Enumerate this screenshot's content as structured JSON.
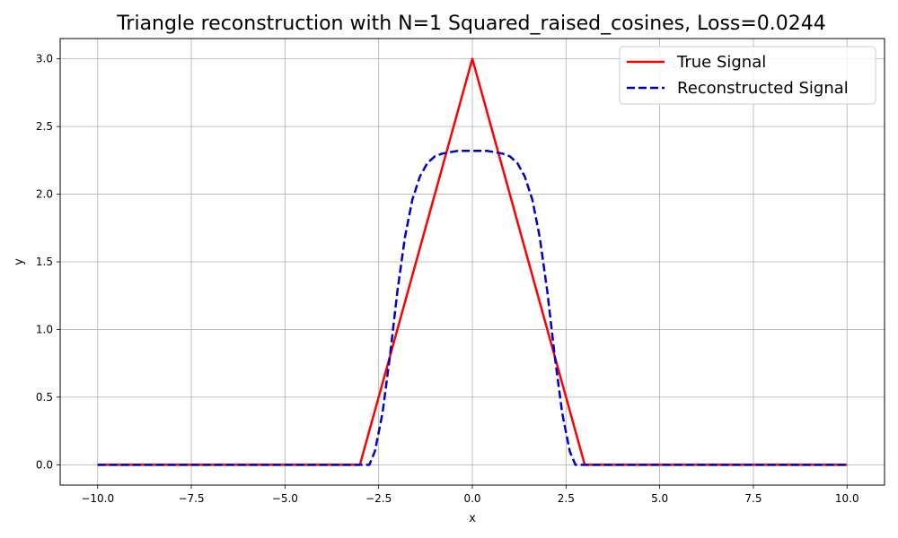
{
  "chart_data": {
    "type": "line",
    "title": "Triangle reconstruction with N=1 Squared_raised_cosines, Loss=0.0244",
    "xlabel": "x",
    "ylabel": "y",
    "xlim": [
      -11.0,
      11.0
    ],
    "ylim": [
      -0.15,
      3.15
    ],
    "xticks": [
      -10.0,
      -7.5,
      -5.0,
      -2.5,
      0.0,
      2.5,
      5.0,
      7.5,
      10.0
    ],
    "xtick_labels": [
      "−10.0",
      "−7.5",
      "−5.0",
      "−2.5",
      "0.0",
      "2.5",
      "5.0",
      "7.5",
      "10.0"
    ],
    "yticks": [
      0.0,
      0.5,
      1.0,
      1.5,
      2.0,
      2.5,
      3.0
    ],
    "ytick_labels": [
      "0.0",
      "0.5",
      "1.0",
      "1.5",
      "2.0",
      "2.5",
      "3.0"
    ],
    "grid": true,
    "legend_position": "top-right",
    "series": [
      {
        "name": "True Signal",
        "color": "#ff0000",
        "style": "solid",
        "x": [
          -10.0,
          -3.0,
          0.0,
          3.0,
          10.0
        ],
        "y": [
          0.0,
          0.0,
          3.0,
          0.0,
          0.0
        ]
      },
      {
        "name": "Reconstructed Signal",
        "color": "#0000cc",
        "style": "dashed",
        "x": [
          -10.0,
          -2.75,
          -2.6,
          -2.4,
          -2.2,
          -2.0,
          -1.8,
          -1.6,
          -1.4,
          -1.2,
          -1.0,
          -0.8,
          -0.6,
          -0.4,
          -0.2,
          0.0,
          0.2,
          0.4,
          0.6,
          0.8,
          1.0,
          1.2,
          1.4,
          1.6,
          1.8,
          2.0,
          2.2,
          2.4,
          2.6,
          2.75,
          10.0
        ],
        "y": [
          0.0,
          0.0,
          0.1,
          0.38,
          0.8,
          1.28,
          1.68,
          1.96,
          2.13,
          2.23,
          2.28,
          2.3,
          2.31,
          2.32,
          2.32,
          2.32,
          2.32,
          2.32,
          2.31,
          2.3,
          2.28,
          2.23,
          2.13,
          1.96,
          1.68,
          1.28,
          0.8,
          0.38,
          0.1,
          0.0,
          0.0
        ]
      }
    ]
  }
}
